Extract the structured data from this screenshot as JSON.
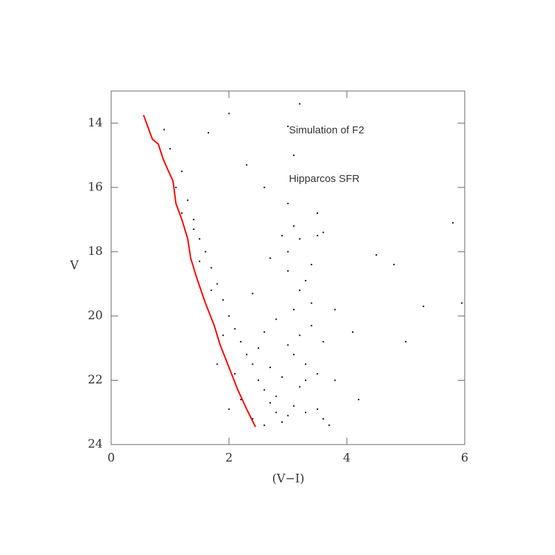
{
  "chart_data": {
    "type": "scatter",
    "xlabel": "(V−I)",
    "ylabel": "V",
    "annotations": [
      "Simulation of F2",
      "Hipparcos SFR"
    ],
    "annotation_color": "#ff0000",
    "xlim": [
      0,
      6
    ],
    "ylim": [
      24,
      13
    ],
    "xticks": [
      0,
      2,
      4,
      6
    ],
    "yticks": [
      14,
      16,
      18,
      20,
      22,
      24
    ],
    "points": {
      "color": "#000000",
      "x": [
        0.9,
        1.0,
        1.2,
        1.1,
        1.3,
        1.4,
        1.2,
        1.5,
        1.6,
        1.4,
        1.7,
        1.8,
        1.5,
        1.9,
        2.0,
        1.7,
        2.1,
        2.2,
        1.9,
        2.3,
        2.4,
        2.1,
        2.5,
        2.6,
        2.2,
        2.7,
        2.8,
        2.4,
        2.9,
        3.0,
        2.6,
        2.8,
        3.1,
        2.5,
        2.7,
        3.2,
        2.9,
        3.3,
        2.6,
        3.0,
        3.4,
        2.8,
        3.5,
        3.1,
        3.6,
        3.2,
        3.7,
        3.0,
        3.3,
        3.4,
        3.2,
        3.1,
        3.3,
        3.5,
        3.0,
        3.2,
        3.4,
        3.1,
        3.6,
        3.3,
        2.9,
        3.0,
        3.1,
        3.2,
        3.5,
        3.8,
        4.1,
        4.5,
        4.8,
        5.0,
        5.3,
        5.8,
        5.95,
        1.65,
        2.0,
        3.0,
        3.5,
        4.2,
        2.6,
        2.3,
        1.8,
        2.0,
        2.4,
        2.7,
        3.6,
        3.8
      ],
      "y": [
        14.2,
        14.8,
        15.5,
        16.0,
        16.4,
        17.0,
        16.8,
        17.6,
        18.0,
        17.3,
        18.5,
        19.0,
        18.3,
        19.5,
        20.0,
        19.2,
        20.4,
        20.8,
        20.6,
        21.2,
        21.5,
        21.8,
        22.0,
        22.3,
        22.6,
        22.7,
        23.0,
        23.2,
        23.3,
        23.1,
        23.4,
        22.5,
        22.8,
        21.0,
        21.6,
        22.2,
        21.9,
        21.5,
        20.5,
        20.9,
        20.3,
        20.1,
        22.9,
        19.8,
        23.2,
        19.2,
        23.4,
        18.6,
        18.9,
        19.6,
        20.6,
        21.2,
        22.0,
        21.8,
        18.0,
        17.6,
        18.4,
        17.2,
        20.8,
        23.0,
        17.5,
        16.5,
        15.0,
        13.4,
        17.5,
        19.8,
        20.5,
        18.1,
        18.4,
        20.8,
        19.7,
        17.1,
        19.6,
        14.3,
        13.7,
        14.1,
        16.8,
        22.6,
        16.0,
        15.3,
        21.5,
        22.9,
        19.3,
        18.2,
        17.4,
        22.0
      ]
    },
    "line": {
      "color": "#ff0000",
      "x": [
        0.55,
        0.62,
        0.7,
        0.8,
        0.88,
        0.95,
        1.05,
        1.1,
        1.2,
        1.3,
        1.35,
        1.45,
        1.6,
        1.75,
        1.85,
        2.0,
        2.15,
        2.3,
        2.45
      ],
      "y": [
        13.75,
        14.1,
        14.5,
        14.65,
        15.1,
        15.4,
        15.8,
        16.5,
        17.0,
        17.6,
        18.2,
        18.8,
        19.6,
        20.3,
        20.9,
        21.6,
        22.3,
        22.9,
        23.45
      ]
    }
  }
}
